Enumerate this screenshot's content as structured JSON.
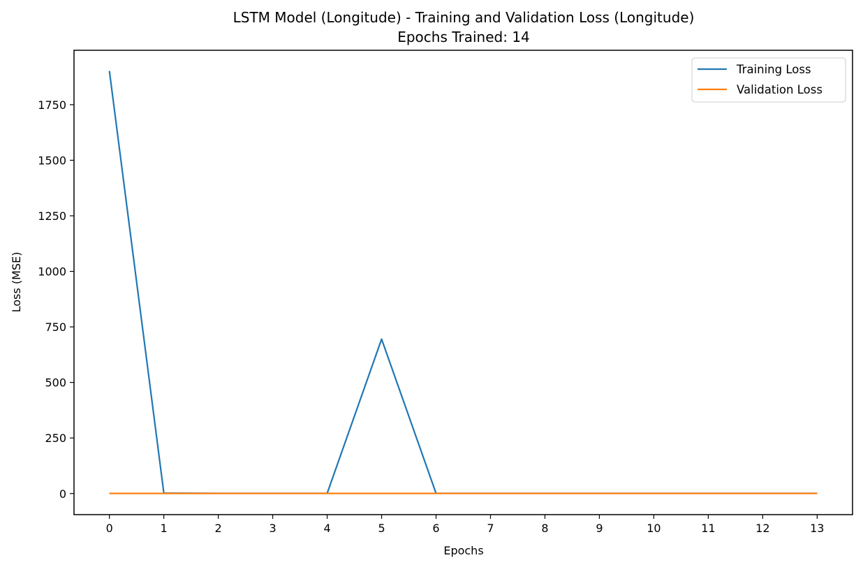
{
  "chart_data": {
    "type": "line",
    "title": "LSTM Model (Longitude) - Training and Validation Loss (Longitude)",
    "subtitle": "Epochs Trained: 14",
    "xlabel": "Epochs",
    "ylabel": "Loss (MSE)",
    "x": [
      0,
      1,
      2,
      3,
      4,
      5,
      6,
      7,
      8,
      9,
      10,
      11,
      12,
      13
    ],
    "xlim": [
      -0.65,
      13.65
    ],
    "ylim": [
      -95,
      1995
    ],
    "xticks": [
      0,
      1,
      2,
      3,
      4,
      5,
      6,
      7,
      8,
      9,
      10,
      11,
      12,
      13
    ],
    "yticks": [
      0,
      250,
      500,
      750,
      1000,
      1250,
      1500,
      1750
    ],
    "grid": false,
    "legend_position": "top-right",
    "series": [
      {
        "name": "Training Loss",
        "color": "#1f77b4",
        "values": [
          1902,
          2,
          1,
          1,
          1,
          695,
          1,
          1,
          1,
          1,
          1,
          1,
          1,
          1
        ]
      },
      {
        "name": "Validation Loss",
        "color": "#ff7f0e",
        "values": [
          0.5,
          0.5,
          0.5,
          0.5,
          0.5,
          0.5,
          0.5,
          0.5,
          0.5,
          0.5,
          0.5,
          0.5,
          0.5,
          0.5
        ]
      }
    ]
  }
}
